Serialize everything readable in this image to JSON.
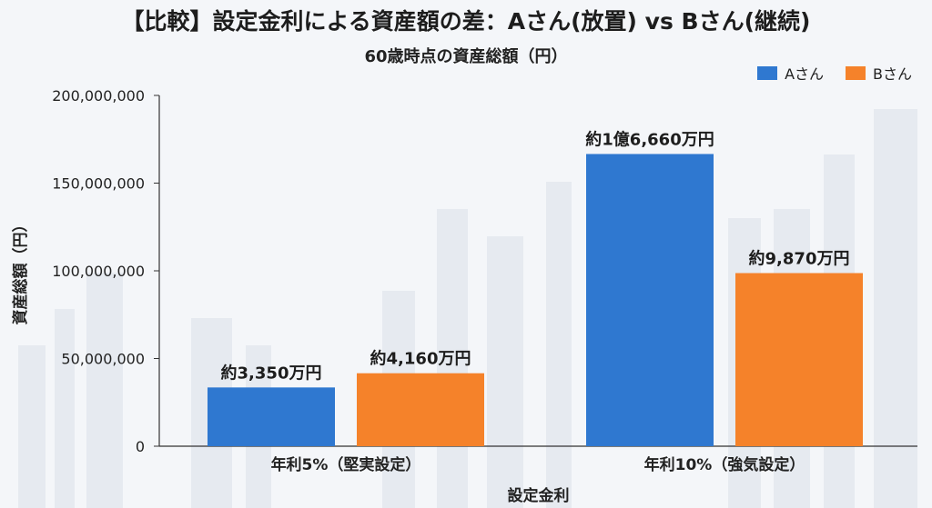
{
  "chart_data": {
    "type": "bar",
    "title": "【比較】設定金利による資産額の差：Aさん(放置) vs Bさん(継続)",
    "subtitle": "60歳時点の資産総額（円）",
    "xlabel": "設定金利",
    "ylabel": "資産総額（円）",
    "categories": [
      "年利5%（堅実設定）",
      "年利10%（強気設定）"
    ],
    "series": [
      {
        "name": "Aさん",
        "color": "#2f78d0",
        "values": [
          33500000,
          166600000
        ],
        "labels": [
          "約3,350万円",
          "約1億6,660万円"
        ]
      },
      {
        "name": "Bさん",
        "color": "#f5822a",
        "values": [
          41600000,
          98700000
        ],
        "labels": [
          "約4,160万円",
          "約9,870万円"
        ]
      }
    ],
    "ylim": [
      0,
      200000000
    ],
    "yticks": [
      0,
      50000000,
      100000000,
      150000000,
      200000000
    ],
    "ytick_labels": [
      "0",
      "50,000,000",
      "100,000,000",
      "150,000,000",
      "200,000,000"
    ],
    "legend_position": "top-right",
    "grid": false
  }
}
